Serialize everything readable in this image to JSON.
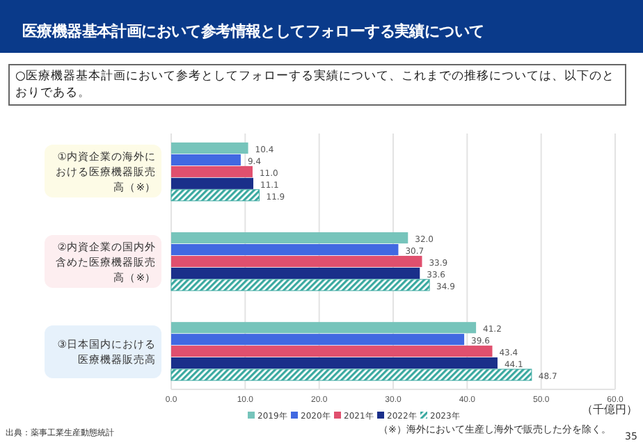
{
  "chart_data": {
    "type": "bar",
    "orientation": "horizontal",
    "title": "医療機器基本計画において参考情報としてフォローする実績について",
    "subtitle": "○医療機器基本計画において参考としてフォローする実績について、これまでの推移については、以下のとおりである。",
    "categories": [
      "①内資企業の海外における医療機器販売高（※）",
      "②内資企業の国内外含めた医療機器販売高（※）",
      "③日本国内における医療機器販売高"
    ],
    "series": [
      {
        "name": "2019年",
        "color": "#76c4bb",
        "values": [
          10.4,
          32.0,
          41.2
        ],
        "value_labels": [
          "10.4",
          "32.0",
          "41.2"
        ]
      },
      {
        "name": "2020年",
        "color": "#4169e1",
        "values": [
          9.4,
          30.7,
          39.6
        ],
        "value_labels": [
          "9.4",
          "30.7",
          "39.6"
        ]
      },
      {
        "name": "2021年",
        "color": "#e0506e",
        "values": [
          11.0,
          33.9,
          43.4
        ],
        "value_labels": [
          "11.0",
          "33.9",
          "43.4"
        ]
      },
      {
        "name": "2022年",
        "color": "#1a2f8a",
        "values": [
          11.1,
          33.6,
          44.1
        ],
        "value_labels": [
          "11.1",
          "33.6",
          "44.1"
        ]
      },
      {
        "name": "2023年",
        "color": "#3aa9a0",
        "values": [
          11.9,
          34.9,
          48.7
        ],
        "value_labels": [
          "11.9",
          "34.9",
          "48.7"
        ]
      }
    ],
    "xlim": [
      0,
      60
    ],
    "xticks": [
      {
        "value": 0,
        "label": "0.0"
      },
      {
        "value": 10,
        "label": "10.0"
      },
      {
        "value": 20,
        "label": "20.0"
      },
      {
        "value": 30,
        "label": "30.0"
      },
      {
        "value": 40,
        "label": "40.0"
      },
      {
        "value": 50,
        "label": "50.0"
      },
      {
        "value": 60,
        "label": "60.0"
      }
    ],
    "xlabel": "（千億円）",
    "grid": "x",
    "legend": "bottom",
    "annotations": [
      "出典：薬事工業生産動態統計",
      "（※）海外において生産し海外で販売した分を除く。",
      "35"
    ]
  }
}
